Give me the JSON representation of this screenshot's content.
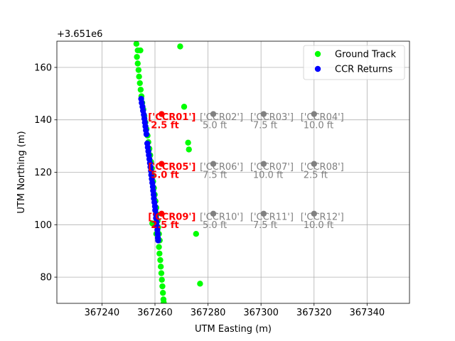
{
  "chart_data": {
    "type": "scatter",
    "xlabel": "UTM Easting (m)",
    "ylabel": "UTM Northing (m)",
    "y_offset_label": "+3.651e6",
    "xlim": [
      367223,
      367356
    ],
    "ylim": [
      70,
      170
    ],
    "x_ticks": [
      367240,
      367260,
      367280,
      367300,
      367320,
      367340
    ],
    "y_ticks": [
      80,
      100,
      120,
      140,
      160
    ],
    "grid": true,
    "legend_position": "top-right",
    "series": [
      {
        "name": "Ground Track",
        "color": "#00ff00",
        "points": [
          [
            367253,
            169
          ],
          [
            367253.5,
            166.5
          ],
          [
            367254.5,
            166.5
          ],
          [
            367253.2,
            164
          ],
          [
            367253.5,
            161.5
          ],
          [
            367253.8,
            159
          ],
          [
            367254,
            156.5
          ],
          [
            367254.3,
            154
          ],
          [
            367254.6,
            151.5
          ],
          [
            367254.9,
            149
          ],
          [
            367255.2,
            146.5
          ],
          [
            367255.6,
            144
          ],
          [
            367256,
            141.5
          ],
          [
            367256.4,
            139
          ],
          [
            367256.8,
            136.5
          ],
          [
            367257.2,
            134
          ],
          [
            367257.5,
            131.5
          ],
          [
            367257.9,
            129
          ],
          [
            367258.2,
            126.5
          ],
          [
            367258.5,
            124
          ],
          [
            367258.8,
            121.5
          ],
          [
            367259,
            119
          ],
          [
            367259.3,
            116.5
          ],
          [
            367259.6,
            114
          ],
          [
            367259.9,
            111.5
          ],
          [
            367260.2,
            109
          ],
          [
            367260.5,
            106.5
          ],
          [
            367260.8,
            104
          ],
          [
            367259,
            100.5
          ],
          [
            367261,
            101.5
          ],
          [
            367261.2,
            99
          ],
          [
            367260.5,
            96.5
          ],
          [
            367261.5,
            96.5
          ],
          [
            367261.8,
            94
          ],
          [
            367261.5,
            91.5
          ],
          [
            367261.7,
            89
          ],
          [
            367262,
            86.5
          ],
          [
            367262.2,
            84
          ],
          [
            367262.4,
            81.5
          ],
          [
            367262.6,
            79
          ],
          [
            367262.8,
            76.5
          ],
          [
            367263,
            74
          ],
          [
            367263.2,
            71.5
          ],
          [
            367263.3,
            70.3
          ],
          [
            367269.5,
            168
          ],
          [
            367271,
            145
          ],
          [
            367272.5,
            131.3
          ],
          [
            367272.8,
            128.7
          ],
          [
            367275.5,
            96.5
          ],
          [
            367277,
            77.5
          ]
        ]
      },
      {
        "name": "CCR Returns",
        "color": "#0000ff",
        "points": [
          [
            367254.8,
            148
          ],
          [
            367255,
            146.5
          ],
          [
            367255.3,
            145
          ],
          [
            367255.5,
            143.5
          ],
          [
            367255.8,
            142
          ],
          [
            367256,
            140.5
          ],
          [
            367256.2,
            139
          ],
          [
            367256.4,
            137.5
          ],
          [
            367256.6,
            136
          ],
          [
            367256.8,
            134.5
          ],
          [
            367257.1,
            131
          ],
          [
            367257.3,
            129.5
          ],
          [
            367257.5,
            128
          ],
          [
            367257.7,
            126.5
          ],
          [
            367257.9,
            125
          ],
          [
            367258.1,
            123.5
          ],
          [
            367258.3,
            122
          ],
          [
            367258.5,
            120.5
          ],
          [
            367258.6,
            119
          ],
          [
            367258.8,
            117.5
          ],
          [
            367259,
            116
          ],
          [
            367259.2,
            114.5
          ],
          [
            367259.3,
            113
          ],
          [
            367259.5,
            111.5
          ],
          [
            367259.6,
            110
          ],
          [
            367259.8,
            108.5
          ],
          [
            367260,
            107
          ],
          [
            367260.1,
            105.5
          ],
          [
            367260.3,
            104
          ],
          [
            367260.4,
            102.5
          ],
          [
            367260.6,
            101
          ],
          [
            367260.7,
            99.5
          ],
          [
            367260.9,
            98
          ],
          [
            367261,
            96.5
          ],
          [
            367261.1,
            95
          ],
          [
            367261.2,
            94
          ]
        ]
      }
    ],
    "reflectors": [
      {
        "x": 367262.5,
        "y": 142.2,
        "label": "['CCR01']",
        "size": "2.5 ft",
        "color": "#ff0000",
        "bold": true
      },
      {
        "x": 367282,
        "y": 142.2,
        "label": "['CCR02']",
        "size": "5.0 ft",
        "color": "#808080",
        "bold": false
      },
      {
        "x": 367301,
        "y": 142.2,
        "label": "['CCR03']",
        "size": "7.5 ft",
        "color": "#808080",
        "bold": false
      },
      {
        "x": 367320,
        "y": 142.2,
        "label": "['CCR04']",
        "size": "10.0 ft",
        "color": "#808080",
        "bold": false
      },
      {
        "x": 367262.5,
        "y": 123.2,
        "label": "['CCR05']",
        "size": "5.0 ft",
        "color": "#ff0000",
        "bold": true
      },
      {
        "x": 367282,
        "y": 123.2,
        "label": "['CCR06']",
        "size": "7.5 ft",
        "color": "#808080",
        "bold": false
      },
      {
        "x": 367301,
        "y": 123.2,
        "label": "['CCR07']",
        "size": "10.0 ft",
        "color": "#808080",
        "bold": false
      },
      {
        "x": 367320,
        "y": 123.2,
        "label": "['CCR08']",
        "size": "2.5 ft",
        "color": "#808080",
        "bold": false
      },
      {
        "x": 367262.5,
        "y": 104.2,
        "label": "['CCR09']",
        "size": "2.5 ft",
        "color": "#ff0000",
        "bold": true
      },
      {
        "x": 367282,
        "y": 104.2,
        "label": "['CCR10']",
        "size": "5.0 ft",
        "color": "#808080",
        "bold": false
      },
      {
        "x": 367301,
        "y": 104.2,
        "label": "['CCR11']",
        "size": "7.5 ft",
        "color": "#808080",
        "bold": false
      },
      {
        "x": 367320,
        "y": 104.2,
        "label": "['CCR12']",
        "size": "10.0 ft",
        "color": "#808080",
        "bold": false
      }
    ]
  }
}
